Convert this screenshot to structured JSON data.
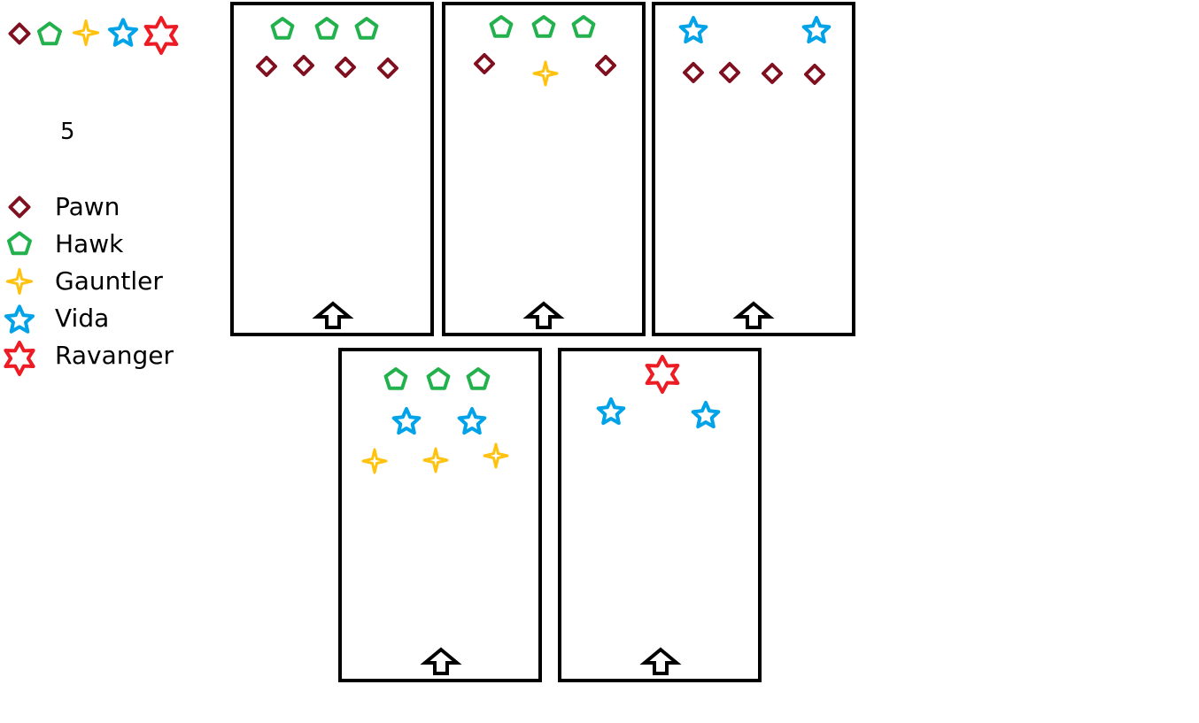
{
  "colors": {
    "pawn": "#7f1020",
    "hawk": "#22b14c",
    "gauntler": "#ffc20e",
    "vida": "#00a2e8",
    "ravanger": "#ed1c24",
    "frame": "#000000"
  },
  "header_icons": [
    "pawn-icon",
    "hawk-icon",
    "gauntler-icon",
    "vida-icon",
    "ravanger-icon"
  ],
  "wave_count": "5",
  "legend": [
    {
      "key": "pawn",
      "icon": "diamond-icon",
      "label": "Pawn"
    },
    {
      "key": "hawk",
      "icon": "pentagon-icon",
      "label": "Hawk"
    },
    {
      "key": "gauntler",
      "icon": "four-point-star-icon",
      "label": "Gauntler"
    },
    {
      "key": "vida",
      "icon": "five-point-star-icon",
      "label": "Vida"
    },
    {
      "key": "ravanger",
      "icon": "six-point-star-icon",
      "label": "Ravanger"
    }
  ],
  "waves": [
    {
      "enemies": {
        "hawk": 3,
        "pawn": 4
      }
    },
    {
      "enemies": {
        "hawk": 3,
        "pawn": 2,
        "gauntler": 1
      }
    },
    {
      "enemies": {
        "vida": 2,
        "pawn": 4
      }
    },
    {
      "enemies": {
        "hawk": 3,
        "vida": 2,
        "gauntler": 3
      }
    },
    {
      "enemies": {
        "ravanger": 1,
        "vida": 2
      }
    }
  ]
}
